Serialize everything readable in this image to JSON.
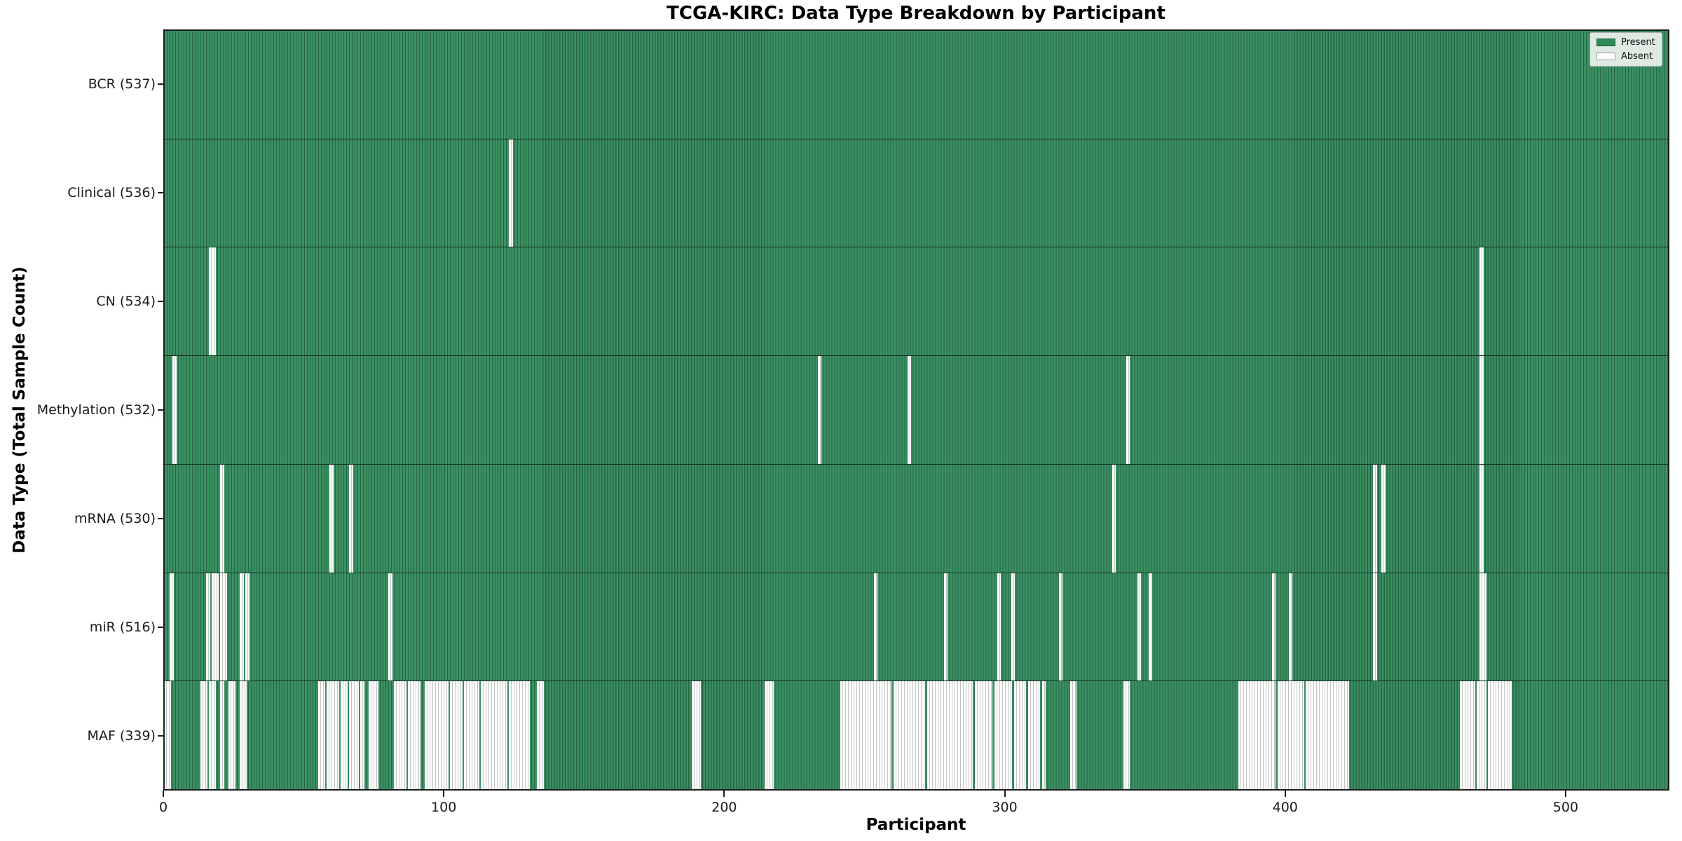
{
  "title": "TCGA-KIRC: Data Type Breakdown by Participant",
  "axes": {
    "xlabel": "Participant",
    "ylabel": "Data Type (Total Sample Count)"
  },
  "legend": {
    "position": "upper right",
    "items": [
      {
        "label": "Present",
        "color": "#2e8b57",
        "edge": "#1d5c39"
      },
      {
        "label": "Absent",
        "color": "#ffffff",
        "edge": "#999999"
      }
    ]
  },
  "chart_data": {
    "type": "heatmap",
    "title": "TCGA-KIRC: Data Type Breakdown by Participant",
    "xlabel": "Participant",
    "ylabel": "Data Type (Total Sample Count)",
    "x_ticks": [
      0,
      100,
      200,
      300,
      400,
      500
    ],
    "x_range": [
      0,
      537
    ],
    "n_participants": 537,
    "grid": false,
    "legend_position": "upper right",
    "colors": {
      "present": "#2e8b57",
      "present_light": "#3a9162",
      "present_edge": "#286446",
      "absent": "#ffffff",
      "absent_edge": "#c4c4c4"
    },
    "rows": [
      {
        "data_type": "BCR",
        "label": "BCR (537)",
        "total_count": 537,
        "absent_ranges": []
      },
      {
        "data_type": "Clinical",
        "label": "Clinical (536)",
        "total_count": 536,
        "absent_ranges": [
          [
            123,
            123
          ]
        ]
      },
      {
        "data_type": "CN",
        "label": "CN (534)",
        "total_count": 534,
        "absent_ranges": [
          [
            16,
            17
          ],
          [
            469,
            469
          ]
        ]
      },
      {
        "data_type": "Methylation",
        "label": "Methylation (532)",
        "total_count": 532,
        "absent_ranges": [
          [
            3,
            3
          ],
          [
            233,
            233
          ],
          [
            265,
            265
          ],
          [
            343,
            343
          ],
          [
            469,
            469
          ]
        ]
      },
      {
        "data_type": "mRNA",
        "label": "mRNA (530)",
        "total_count": 530,
        "absent_ranges": [
          [
            20,
            20
          ],
          [
            59,
            59
          ],
          [
            66,
            66
          ],
          [
            338,
            338
          ],
          [
            431,
            431
          ],
          [
            434,
            434
          ],
          [
            469,
            469
          ]
        ]
      },
      {
        "data_type": "miR",
        "label": "miR (516)",
        "total_count": 516,
        "absent_ranges": [
          [
            2,
            2
          ],
          [
            15,
            15
          ],
          [
            17,
            18
          ],
          [
            20,
            21
          ],
          [
            27,
            27
          ],
          [
            29,
            29
          ],
          [
            80,
            80
          ],
          [
            253,
            253
          ],
          [
            278,
            278
          ],
          [
            297,
            297
          ],
          [
            302,
            302
          ],
          [
            319,
            319
          ],
          [
            347,
            347
          ],
          [
            351,
            351
          ],
          [
            395,
            395
          ],
          [
            401,
            401
          ],
          [
            431,
            431
          ],
          [
            469,
            470
          ]
        ]
      },
      {
        "data_type": "MAF",
        "label": "MAF (339)",
        "total_count": 339,
        "absent_ranges": [
          [
            0,
            1
          ],
          [
            13,
            14
          ],
          [
            16,
            17
          ],
          [
            20,
            20
          ],
          [
            23,
            24
          ],
          [
            27,
            28
          ],
          [
            55,
            56
          ],
          [
            58,
            61
          ],
          [
            63,
            64
          ],
          [
            66,
            68
          ],
          [
            70,
            70
          ],
          [
            73,
            75
          ],
          [
            82,
            85
          ],
          [
            87,
            90
          ],
          [
            93,
            100
          ],
          [
            102,
            105
          ],
          [
            107,
            111
          ],
          [
            113,
            121
          ],
          [
            123,
            129
          ],
          [
            133,
            134
          ],
          [
            188,
            190
          ],
          [
            214,
            216
          ],
          [
            241,
            258
          ],
          [
            260,
            270
          ],
          [
            272,
            287
          ],
          [
            289,
            294
          ],
          [
            296,
            301
          ],
          [
            303,
            306
          ],
          [
            308,
            311
          ],
          [
            313,
            313
          ],
          [
            323,
            324
          ],
          [
            342,
            343
          ],
          [
            383,
            395
          ],
          [
            397,
            405
          ],
          [
            407,
            421
          ],
          [
            462,
            466
          ],
          [
            468,
            470
          ],
          [
            472,
            479
          ]
        ]
      }
    ]
  }
}
